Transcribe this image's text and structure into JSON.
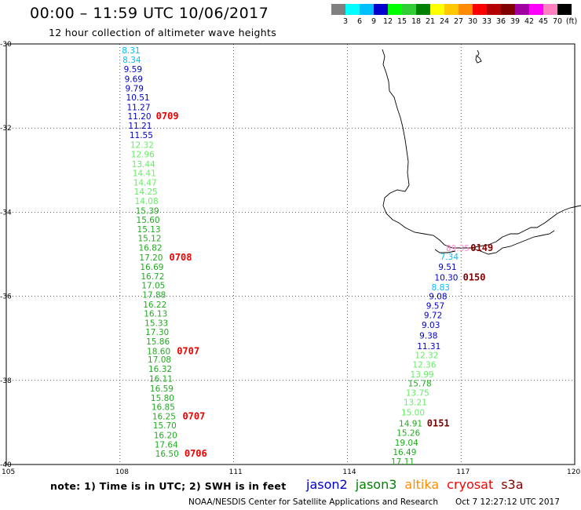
{
  "header": {
    "title": "00:00 – 11:59 UTC 10/06/2017",
    "subtitle": "12 hour collection of altimeter wave heights"
  },
  "legend": {
    "colors": [
      "#808080",
      "#00ffff",
      "#00bfff",
      "#0000cd",
      "#00ff00",
      "#32cd32",
      "#008000",
      "#ffff00",
      "#ffc800",
      "#ff8c00",
      "#ff0000",
      "#b40000",
      "#800000",
      "#a000a0",
      "#ff00ff",
      "#ff80c0",
      "#000000"
    ],
    "labels": [
      "3",
      "6",
      "9",
      "12",
      "15",
      "18",
      "21",
      "24",
      "27",
      "30",
      "33",
      "36",
      "39",
      "42",
      "45",
      "70",
      "(ft)"
    ]
  },
  "axes": {
    "lat_labels": [
      "-30",
      "-32",
      "-34",
      "-36",
      "-38",
      "-40"
    ],
    "lon_labels": [
      "105",
      "108",
      "111",
      "114",
      "117",
      "120"
    ]
  },
  "map_data": {
    "lat_range": [
      -40,
      -30
    ],
    "lon_range": [
      105,
      120
    ],
    "tracks": [
      {
        "satellite": "jason3",
        "points": [
          {
            "lat": -30.15,
            "lon": 108.05,
            "swh": "8.31",
            "color": "#00bfff"
          },
          {
            "lat": -30.37,
            "lon": 108.07,
            "swh": "8.34",
            "color": "#00bfff"
          },
          {
            "lat": -30.6,
            "lon": 108.1,
            "swh": "9.59",
            "color": "#0000cd"
          },
          {
            "lat": -30.83,
            "lon": 108.12,
            "swh": "9.69",
            "color": "#0000cd"
          },
          {
            "lat": -31.05,
            "lon": 108.14,
            "swh": "9.79",
            "color": "#0000cd"
          },
          {
            "lat": -31.27,
            "lon": 108.16,
            "swh": "10.51",
            "color": "#0000cd"
          },
          {
            "lat": -31.5,
            "lon": 108.18,
            "swh": "11.27",
            "color": "#0000cd"
          },
          {
            "lat": -31.72,
            "lon": 108.2,
            "swh": "11.20",
            "color": "#0000cd"
          },
          {
            "lat": -31.94,
            "lon": 108.22,
            "swh": "11.21",
            "color": "#0000cd"
          },
          {
            "lat": -32.16,
            "lon": 108.25,
            "swh": "11.55",
            "color": "#0000cd"
          },
          {
            "lat": -32.4,
            "lon": 108.27,
            "swh": "12.32",
            "color": "#66ee66"
          },
          {
            "lat": -32.62,
            "lon": 108.29,
            "swh": "12.96",
            "color": "#66ee66"
          },
          {
            "lat": -32.85,
            "lon": 108.31,
            "swh": "13.44",
            "color": "#66ee66"
          },
          {
            "lat": -33.07,
            "lon": 108.33,
            "swh": "14.41",
            "color": "#66ee66"
          },
          {
            "lat": -33.29,
            "lon": 108.35,
            "swh": "14.47",
            "color": "#66ee66"
          },
          {
            "lat": -33.51,
            "lon": 108.37,
            "swh": "14.25",
            "color": "#66ee66"
          },
          {
            "lat": -33.73,
            "lon": 108.39,
            "swh": "14.08",
            "color": "#66ee66"
          },
          {
            "lat": -33.96,
            "lon": 108.41,
            "swh": "15.39",
            "color": "#22aa22"
          },
          {
            "lat": -34.18,
            "lon": 108.43,
            "swh": "15.60",
            "color": "#22aa22"
          },
          {
            "lat": -34.4,
            "lon": 108.45,
            "swh": "15.13",
            "color": "#22aa22"
          },
          {
            "lat": -34.62,
            "lon": 108.47,
            "swh": "15.12",
            "color": "#22aa22"
          },
          {
            "lat": -34.84,
            "lon": 108.49,
            "swh": "16.82",
            "color": "#22aa22"
          },
          {
            "lat": -35.07,
            "lon": 108.51,
            "swh": "17.20",
            "color": "#22aa22"
          },
          {
            "lat": -35.3,
            "lon": 108.53,
            "swh": "16.69",
            "color": "#22aa22"
          },
          {
            "lat": -35.52,
            "lon": 108.55,
            "swh": "16.72",
            "color": "#22aa22"
          },
          {
            "lat": -35.74,
            "lon": 108.57,
            "swh": "17.05",
            "color": "#22aa22"
          },
          {
            "lat": -35.96,
            "lon": 108.59,
            "swh": "17.88",
            "color": "#22aa22"
          },
          {
            "lat": -36.19,
            "lon": 108.61,
            "swh": "16.22",
            "color": "#22aa22"
          },
          {
            "lat": -36.41,
            "lon": 108.63,
            "swh": "16.13",
            "color": "#22aa22"
          },
          {
            "lat": -36.63,
            "lon": 108.65,
            "swh": "15.33",
            "color": "#22aa22"
          },
          {
            "lat": -36.85,
            "lon": 108.67,
            "swh": "17.30",
            "color": "#22aa22"
          },
          {
            "lat": -37.07,
            "lon": 108.69,
            "swh": "15.86",
            "color": "#22aa22"
          },
          {
            "lat": -37.3,
            "lon": 108.71,
            "swh": "18.60",
            "color": "#22aa22"
          },
          {
            "lat": -37.5,
            "lon": 108.73,
            "swh": "17.08",
            "color": "#22aa22"
          },
          {
            "lat": -37.72,
            "lon": 108.75,
            "swh": "16.32",
            "color": "#22aa22"
          },
          {
            "lat": -37.96,
            "lon": 108.77,
            "swh": "16.11",
            "color": "#22aa22"
          },
          {
            "lat": -38.19,
            "lon": 108.79,
            "swh": "16.59",
            "color": "#22aa22"
          },
          {
            "lat": -38.41,
            "lon": 108.81,
            "swh": "15.80",
            "color": "#22aa22"
          },
          {
            "lat": -38.63,
            "lon": 108.83,
            "swh": "16.85",
            "color": "#22aa22"
          },
          {
            "lat": -38.85,
            "lon": 108.85,
            "swh": "16.25",
            "color": "#22aa22"
          },
          {
            "lat": -39.07,
            "lon": 108.87,
            "swh": "15.70",
            "color": "#22aa22"
          },
          {
            "lat": -39.3,
            "lon": 108.89,
            "swh": "16.20",
            "color": "#22aa22"
          },
          {
            "lat": -39.52,
            "lon": 108.91,
            "swh": "17.64",
            "color": "#22aa22"
          },
          {
            "lat": -39.74,
            "lon": 108.93,
            "swh": "16.50",
            "color": "#22aa22"
          }
        ],
        "times": [
          {
            "lat": -31.72,
            "lon": 108.95,
            "text": "0709",
            "color": "#ee0000"
          },
          {
            "lat": -35.07,
            "lon": 109.3,
            "text": "0708",
            "color": "#ee0000"
          },
          {
            "lat": -37.3,
            "lon": 109.5,
            "text": "0707",
            "color": "#ee0000"
          },
          {
            "lat": -38.85,
            "lon": 109.65,
            "text": "0707",
            "color": "#ee0000"
          },
          {
            "lat": -39.74,
            "lon": 109.7,
            "text": "0706",
            "color": "#ee0000"
          }
        ]
      },
      {
        "satellite": "s3a",
        "points": [
          {
            "lat": -34.85,
            "lon": 116.6,
            "swh": "89.35",
            "color": "#ff88cc"
          },
          {
            "lat": -35.06,
            "lon": 116.45,
            "swh": "7.34",
            "color": "#00bfff"
          },
          {
            "lat": -35.3,
            "lon": 116.4,
            "swh": "9.51",
            "color": "#0000cd"
          },
          {
            "lat": -35.55,
            "lon": 116.3,
            "swh": "10.30",
            "color": "#0000cd"
          },
          {
            "lat": -35.78,
            "lon": 116.22,
            "swh": "8.83",
            "color": "#00bfff"
          },
          {
            "lat": -36.0,
            "lon": 116.15,
            "swh": "9.08",
            "color": "#0000cd"
          },
          {
            "lat": -36.22,
            "lon": 116.08,
            "swh": "9.57",
            "color": "#0000cd"
          },
          {
            "lat": -36.45,
            "lon": 116.02,
            "swh": "9.72",
            "color": "#0000cd"
          },
          {
            "lat": -36.68,
            "lon": 115.96,
            "swh": "9.03",
            "color": "#0000cd"
          },
          {
            "lat": -36.93,
            "lon": 115.9,
            "swh": "9.38",
            "color": "#0000cd"
          },
          {
            "lat": -37.18,
            "lon": 115.84,
            "swh": "11.31",
            "color": "#0000cd"
          },
          {
            "lat": -37.4,
            "lon": 115.78,
            "swh": "12.32",
            "color": "#66ee66"
          },
          {
            "lat": -37.62,
            "lon": 115.72,
            "swh": "12.36",
            "color": "#66ee66"
          },
          {
            "lat": -37.85,
            "lon": 115.66,
            "swh": "13.99",
            "color": "#66ee66"
          },
          {
            "lat": -38.07,
            "lon": 115.6,
            "swh": "15.78",
            "color": "#22aa22"
          },
          {
            "lat": -38.29,
            "lon": 115.54,
            "swh": "13.75",
            "color": "#66ee66"
          },
          {
            "lat": -38.52,
            "lon": 115.48,
            "swh": "13.21",
            "color": "#66ee66"
          },
          {
            "lat": -38.76,
            "lon": 115.42,
            "swh": "15.00",
            "color": "#66ee66"
          },
          {
            "lat": -39.02,
            "lon": 115.36,
            "swh": "14.91",
            "color": "#22aa22"
          },
          {
            "lat": -39.24,
            "lon": 115.3,
            "swh": "15.26",
            "color": "#22aa22"
          },
          {
            "lat": -39.48,
            "lon": 115.25,
            "swh": "19.04",
            "color": "#22aa22"
          },
          {
            "lat": -39.7,
            "lon": 115.2,
            "swh": "16.49",
            "color": "#22aa22"
          },
          {
            "lat": -39.93,
            "lon": 115.15,
            "swh": "17.11",
            "color": "#22aa22"
          }
        ],
        "times": [
          {
            "lat": -34.85,
            "lon": 117.25,
            "text": "0149",
            "color": "#800000"
          },
          {
            "lat": -35.55,
            "lon": 117.05,
            "text": "0150",
            "color": "#800000"
          },
          {
            "lat": -39.02,
            "lon": 116.1,
            "text": "0151",
            "color": "#800000"
          }
        ]
      }
    ]
  },
  "footer": {
    "note": "note: 1) Time is in UTC; 2) SWH is in feet",
    "satellites": [
      {
        "name": "jason2",
        "color": "#0000cd"
      },
      {
        "name": "jason3",
        "color": "#008000"
      },
      {
        "name": "altika",
        "color": "#ff8c00"
      },
      {
        "name": "cryosat",
        "color": "#ff0000"
      },
      {
        "name": "s3a",
        "color": "#800000"
      }
    ],
    "credit": "NOAA/NESDIS Center for Satellite Applications and Research",
    "timestamp": "Oct  7 12:27:12 UTC 2017"
  }
}
